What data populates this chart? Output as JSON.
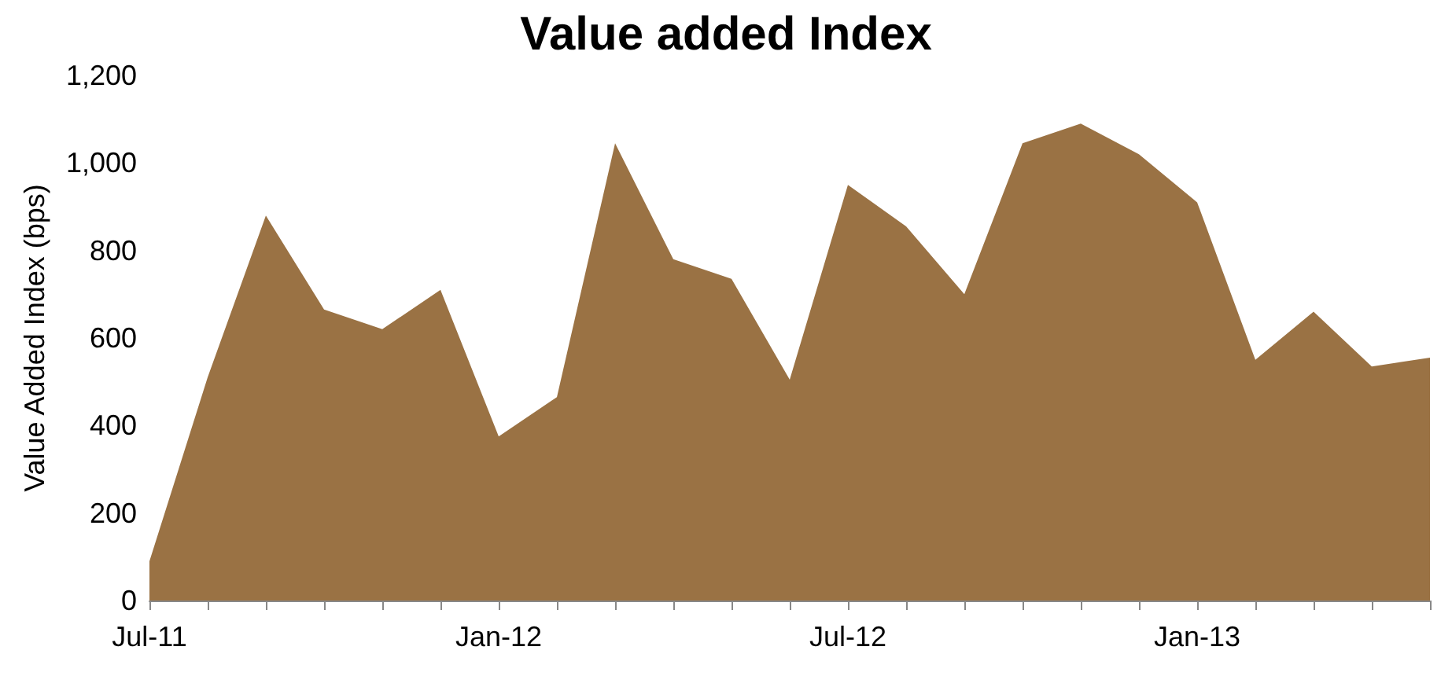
{
  "chart_data": {
    "type": "area",
    "title": "Value added Index",
    "ylabel": "Value Added Index (bps)",
    "categories": [
      "Jul-11",
      null,
      null,
      null,
      null,
      null,
      "Jan-12",
      null,
      null,
      null,
      null,
      null,
      "Jul-12",
      null,
      null,
      null,
      null,
      null,
      "Jan-13",
      null,
      null,
      null,
      null
    ],
    "series": [
      {
        "color": "#9a7244",
        "values": [
          90,
          510,
          880,
          665,
          620,
          710,
          375,
          465,
          1045,
          780,
          735,
          505,
          950,
          855,
          700,
          1045,
          1090,
          1020,
          910,
          550,
          660,
          535,
          555
        ]
      }
    ],
    "ylim": [
      0,
      1200
    ],
    "yticks": [
      0,
      200,
      400,
      600,
      800,
      {
        "value": 1000,
        "label": "1,000"
      },
      {
        "value": 1200,
        "label": "1,200"
      }
    ],
    "grid": false
  }
}
